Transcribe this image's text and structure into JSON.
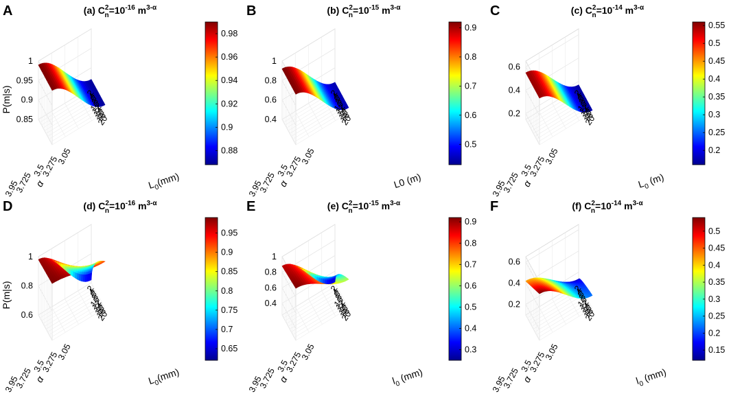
{
  "figure": {
    "colormap": [
      "#00008f",
      "#0000ff",
      "#0080ff",
      "#00ffff",
      "#80ff80",
      "#ffff00",
      "#ff8000",
      "#ff0000",
      "#800000"
    ]
  },
  "chart_data": [
    {
      "panel_label": "A",
      "type": "surface",
      "title": "(a) C²ₙ=10⁻¹⁶ m³⁻ᵅ",
      "title_parts": {
        "pre": "(a) C",
        "sup1": "2",
        "sub": "n",
        "mid": "=10",
        "sup2": "-16",
        "post": " m",
        "sup3": "3-α"
      },
      "xlabel": "L₀(mm)",
      "xlabel_parts": {
        "base": "L",
        "sub": "0",
        "unit": "(mm)"
      },
      "ylabel": "α",
      "zlabel": "P(m|s)",
      "x_ticks": [
        "2",
        "4",
        "6",
        "8",
        "10",
        "12",
        "14",
        "16",
        "18",
        "20"
      ],
      "y_ticks": [
        "3.05",
        "3.275",
        "3.5",
        "3.725",
        "3.95"
      ],
      "z_ticks": [
        "0.85",
        "0.9",
        "0.95",
        "1"
      ],
      "zlim": [
        0.85,
        1.0
      ],
      "colorbar_ticks": [
        "0.88",
        "0.9",
        "0.92",
        "0.94",
        "0.96",
        "0.98"
      ],
      "clim": [
        0.868,
        0.99
      ],
      "surface": {
        "L0": [
          2,
          20
        ],
        "alpha": [
          3.05,
          3.95
        ],
        "P_grid_corners": {
          "L2_a3.05": 0.87,
          "L20_a3.05": 0.87,
          "L2_a3.95": 0.99,
          "L20_a3.95": 0.99
        }
      }
    },
    {
      "panel_label": "B",
      "type": "surface",
      "title": "(b) C²ₙ=10⁻¹⁵ m³⁻ᵅ",
      "title_parts": {
        "pre": "(b) C",
        "sup1": "2",
        "sub": "n",
        "mid": "=10",
        "sup2": "-15",
        "post": " m",
        "sup3": "3-α"
      },
      "xlabel": "L0 (m)",
      "xlabel_parts": {
        "base": "L0",
        "sub": "",
        "unit": " (m)"
      },
      "ylabel": "α",
      "zlabel": "",
      "x_ticks": [
        "2",
        "4",
        "6",
        "8",
        "10",
        "12",
        "14",
        "16",
        "18",
        "20"
      ],
      "y_ticks": [
        "3.05",
        "3.275",
        "3.5",
        "3.725",
        "3.95"
      ],
      "z_ticks": [
        "0.4",
        "0.6",
        "0.8",
        "1"
      ],
      "zlim": [
        0.4,
        1.0
      ],
      "colorbar_ticks": [
        "0.5",
        "0.6",
        "0.7",
        "0.8",
        "0.9"
      ],
      "clim": [
        0.43,
        0.92
      ],
      "surface": {
        "L0": [
          2,
          20
        ],
        "alpha": [
          3.05,
          3.95
        ],
        "P_grid_corners": {
          "L2_a3.05": 0.45,
          "L20_a3.05": 0.45,
          "L2_a3.95": 0.92,
          "L20_a3.95": 0.92
        }
      }
    },
    {
      "panel_label": "C",
      "type": "surface",
      "title": "(c) C²ₙ=10⁻¹⁴ m³⁻ᵅ",
      "title_parts": {
        "pre": "(c) C",
        "sup1": "2",
        "sub": "n",
        "mid": "=10",
        "sup2": "-14",
        "post": " m",
        "sup3": "3-α"
      },
      "xlabel": "L₀ (m)",
      "xlabel_parts": {
        "base": "L",
        "sub": "0",
        "unit": " (m)"
      },
      "ylabel": "α",
      "zlabel": "",
      "x_ticks": [
        "2",
        "4",
        "6",
        "8",
        "10",
        "12",
        "14",
        "16",
        "18",
        "20"
      ],
      "y_ticks": [
        "3.05",
        "3.275",
        "3.5",
        "3.725",
        "3.95"
      ],
      "z_ticks": [
        "0.2",
        "0.4",
        "0.6"
      ],
      "zlim": [
        0.15,
        0.65
      ],
      "colorbar_ticks": [
        "0.2",
        "0.25",
        "0.3",
        "0.35",
        "0.4",
        "0.45",
        "0.5",
        "0.55"
      ],
      "clim": [
        0.16,
        0.56
      ],
      "surface": {
        "L0": [
          2,
          20
        ],
        "alpha": [
          3.05,
          3.95
        ],
        "P_grid_corners": {
          "L2_a3.05": 0.17,
          "L20_a3.05": 0.17,
          "L2_a3.95": 0.55,
          "L20_a3.95": 0.55
        }
      }
    },
    {
      "panel_label": "D",
      "type": "surface",
      "title": "(d) C²ₙ=10⁻¹⁶ m³⁻ᵅ",
      "title_parts": {
        "pre": "(d) C",
        "sup1": "2",
        "sub": "n",
        "mid": "=10",
        "sup2": "-16",
        "post": " m",
        "sup3": "3-α"
      },
      "xlabel": "L₀(mm)",
      "xlabel_parts": {
        "base": "L",
        "sub": "0",
        "unit": "(mm)"
      },
      "ylabel": "α",
      "zlabel": "P(m|s)",
      "x_ticks": [
        "2",
        "4",
        "6",
        "8",
        "10",
        "12",
        "14",
        "16",
        "18",
        "20"
      ],
      "y_ticks": [
        "3.05",
        "3.275",
        "3.5",
        "3.725",
        "3.95"
      ],
      "z_ticks": [
        "0.6",
        "0.8",
        "1"
      ],
      "zlim": [
        0.6,
        1.0
      ],
      "colorbar_ticks": [
        "0.65",
        "0.7",
        "0.75",
        "0.8",
        "0.85",
        "0.9",
        "0.95"
      ],
      "clim": [
        0.62,
        0.99
      ],
      "surface": {
        "L0": [
          2,
          20
        ],
        "alpha": [
          3.05,
          3.95
        ],
        "P_grid_corners": {
          "L2_a3.05": 0.62,
          "L20_a3.05": 0.92,
          "L2_a3.95": 0.98,
          "L20_a3.95": 0.99
        }
      }
    },
    {
      "panel_label": "E",
      "type": "surface",
      "title": "(e) C²ₙ=10⁻¹⁵ m³⁻ᵅ",
      "title_parts": {
        "pre": "(e) C",
        "sup1": "2",
        "sub": "n",
        "mid": "=10",
        "sup2": "-15",
        "post": " m",
        "sup3": "3-α"
      },
      "xlabel": "l₀ (mm)",
      "xlabel_parts": {
        "base": "l",
        "sub": "0",
        "unit": " (mm)"
      },
      "ylabel": "α",
      "zlabel": "",
      "x_ticks": [
        "2",
        "4",
        "6",
        "8",
        "10",
        "12",
        "14",
        "16",
        "18",
        "20"
      ],
      "y_ticks": [
        "3.05",
        "3.275",
        "3.5",
        "3.725",
        "3.95"
      ],
      "z_ticks": [
        "0.4",
        "0.6",
        "0.8",
        "1"
      ],
      "zlim": [
        0.25,
        1.0
      ],
      "colorbar_ticks": [
        "0.3",
        "0.4",
        "0.5",
        "0.6",
        "0.7",
        "0.8",
        "0.9"
      ],
      "clim": [
        0.25,
        0.92
      ],
      "surface": {
        "L0": [
          2,
          20
        ],
        "alpha": [
          3.05,
          3.95
        ],
        "P_grid_corners": {
          "L2_a3.05": 0.26,
          "L20_a3.05": 0.62,
          "L2_a3.95": 0.88,
          "L20_a3.95": 0.92
        }
      }
    },
    {
      "panel_label": "F",
      "type": "surface",
      "title": "(f) C²ₙ=10⁻¹⁴ m³⁻ᵅ",
      "title_parts": {
        "pre": "(f) C",
        "sup1": "2",
        "sub": "n",
        "mid": "=10",
        "sup2": "-14",
        "post": " m",
        "sup3": "3-α"
      },
      "xlabel": "l₀ (mm)",
      "xlabel_parts": {
        "base": "l",
        "sub": "0",
        "unit": " (mm)"
      },
      "ylabel": "α",
      "zlabel": "",
      "x_ticks": [
        "2",
        "4",
        "6",
        "8",
        "10",
        "12",
        "14",
        "16",
        "18",
        "20"
      ],
      "y_ticks": [
        "3.05",
        "3.275",
        "3.5",
        "3.725",
        "3.95"
      ],
      "z_ticks": [
        "0.2",
        "0.4",
        "0.6"
      ],
      "zlim": [
        0.1,
        0.65
      ],
      "colorbar_ticks": [
        "0.15",
        "0.2",
        "0.25",
        "0.3",
        "0.35",
        "0.4",
        "0.45",
        "0.5"
      ],
      "clim": [
        0.12,
        0.54
      ],
      "surface": {
        "L0": [
          2,
          20
        ],
        "alpha": [
          3.05,
          3.95
        ],
        "P_grid_corners": {
          "L2_a3.05": 0.13,
          "L20_a3.05": 0.22,
          "L2_a3.95": 0.42,
          "L20_a3.95": 0.54
        }
      }
    }
  ]
}
